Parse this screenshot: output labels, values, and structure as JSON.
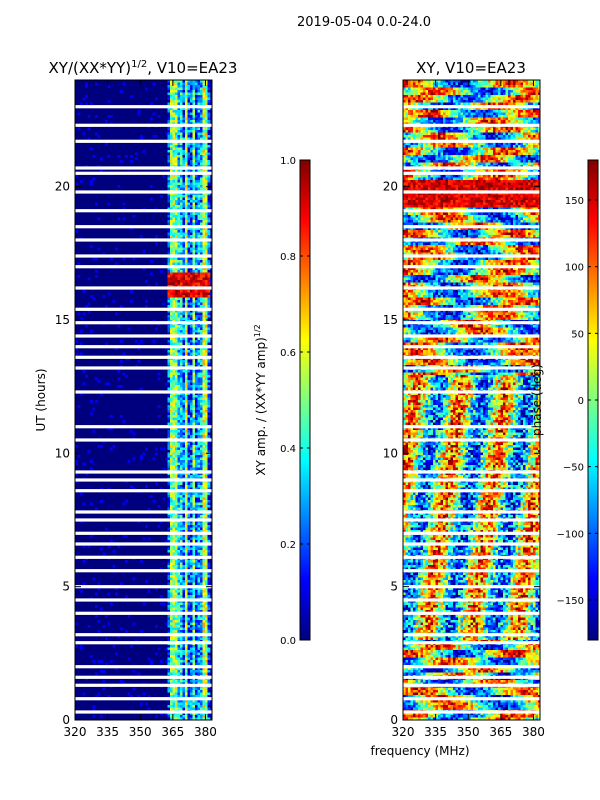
{
  "suptitle": "2019-05-04 0.0-24.0",
  "colors": {
    "jet": [
      "#00007f",
      "#0000ff",
      "#007fff",
      "#00ffff",
      "#7fff7f",
      "#ffff00",
      "#ff7f00",
      "#ff0000",
      "#7f0000"
    ],
    "band": "#ffffff",
    "frame": "#000000"
  },
  "chart_data": [
    {
      "type": "heatmap",
      "title_main": "XY/(XX*YY)",
      "title_sup": "1/2",
      "title_rest": ", V10=EA23",
      "xlabel": "",
      "ylabel": "UT (hours)",
      "xlim": [
        320,
        383
      ],
      "ylim": [
        0,
        24
      ],
      "xticks": [
        320,
        335,
        350,
        365,
        380
      ],
      "yticks": [
        0,
        5,
        10,
        15,
        20
      ],
      "colorbar": {
        "label_main": "XY amp. / (XX*YY amp)",
        "label_sup": "1/2",
        "range": [
          0.0,
          1.0
        ],
        "ticks": [
          0.0,
          0.2,
          0.4,
          0.6,
          0.8,
          1.0
        ],
        "tick_labels": [
          "0.0",
          "0.2",
          "0.4",
          "0.6",
          "0.8",
          "1.0"
        ]
      },
      "flagged_ut_hours": [
        0.3,
        0.8,
        1.3,
        1.6,
        2.0,
        2.9,
        3.2,
        4.0,
        4.5,
        5.0,
        5.6,
        6.1,
        6.6,
        7.0,
        7.5,
        7.8,
        8.6,
        9.0,
        9.3,
        10.5,
        11.0,
        12.3,
        13.2,
        13.6,
        14.0,
        14.4,
        14.9,
        15.4,
        16.2,
        17.0,
        17.4,
        18.0,
        18.5,
        19.1,
        19.8,
        20.5,
        20.7,
        21.7,
        22.3,
        23.0
      ]
    },
    {
      "type": "heatmap",
      "title": "XY, V10=EA23",
      "xlabel": "frequency (MHz)",
      "ylabel": "",
      "xlim": [
        320,
        383
      ],
      "ylim": [
        0,
        24
      ],
      "xticks": [
        320,
        335,
        350,
        365,
        380
      ],
      "yticks": [
        0,
        5,
        10,
        15,
        20
      ],
      "colorbar": {
        "label": "phase (deg)",
        "range": [
          -180,
          180
        ],
        "ticks": [
          -150,
          -100,
          -50,
          0,
          50,
          100,
          150
        ],
        "tick_labels": [
          "−150",
          "−100",
          "−50",
          "0",
          "50",
          "100",
          "150"
        ]
      },
      "flagged_ut_hours": [
        0.3,
        0.8,
        1.3,
        1.6,
        2.0,
        2.9,
        3.2,
        4.0,
        4.5,
        5.0,
        5.6,
        6.1,
        6.6,
        7.0,
        7.5,
        7.8,
        8.6,
        9.0,
        9.3,
        10.5,
        11.0,
        12.3,
        13.2,
        13.6,
        14.0,
        14.4,
        14.9,
        15.4,
        16.2,
        17.0,
        17.4,
        18.0,
        18.5,
        19.1,
        19.8,
        20.5,
        20.7,
        21.7,
        22.3,
        23.0
      ]
    }
  ]
}
